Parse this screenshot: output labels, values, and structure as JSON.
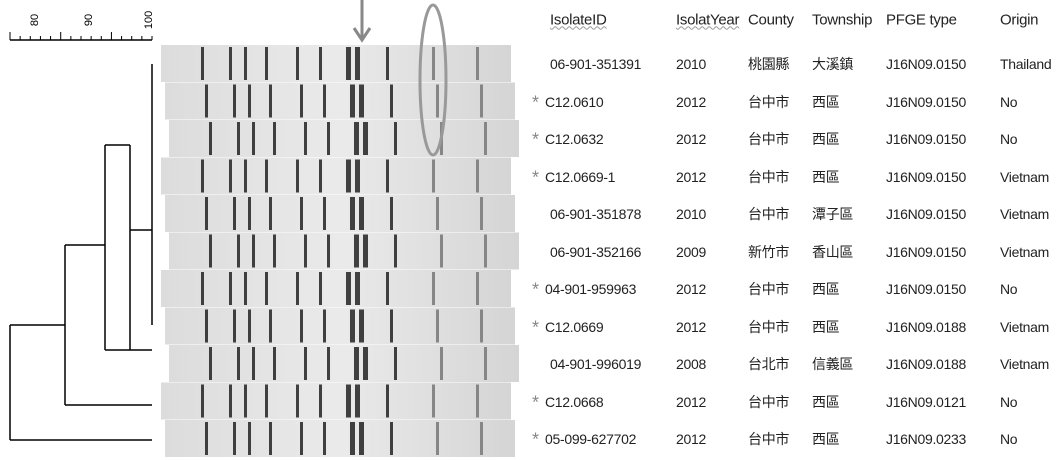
{
  "scale": {
    "labels": [
      "80",
      "90",
      "100"
    ]
  },
  "table": {
    "header": [
      "IsolateID",
      "IsolatYear",
      "County",
      "Township",
      "PFGE type",
      "Origin"
    ],
    "rows": [
      {
        "cells": [
          "06-901-351391",
          "2010",
          "桃園縣",
          "大溪鎮",
          "J16N09.0150",
          "Thailand"
        ]
      },
      {
        "flag": "*",
        "cells": [
          "C12.0610",
          "2012",
          "台中市",
          "西區",
          "J16N09.0150",
          "No"
        ]
      },
      {
        "flag": "*",
        "cells": [
          "C12.0632",
          "2012",
          "台中市",
          "西區",
          "J16N09.0150",
          "No"
        ]
      },
      {
        "flag": "*",
        "cells": [
          "C12.0669-1",
          "2012",
          "台中市",
          "西區",
          "J16N09.0150",
          "Vietnam"
        ]
      },
      {
        "cells": [
          "06-901-351878",
          "2010",
          "台中市",
          "潭子區",
          "J16N09.0150",
          "Vietnam"
        ]
      },
      {
        "cells": [
          "06-901-352166",
          "2009",
          "新竹市",
          "香山區",
          "J16N09.0150",
          "Vietnam"
        ]
      },
      {
        "flag": "*",
        "cells": [
          "04-901-959963",
          "2012",
          "台中市",
          "西區",
          "J16N09.0150",
          "No"
        ]
      },
      {
        "flag": "*",
        "cells": [
          "C12.0669",
          "2012",
          "台中市",
          "西區",
          "J16N09.0188",
          "Vietnam"
        ]
      },
      {
        "cells": [
          "04-901-996019",
          "2008",
          "台北市",
          "信義區",
          "J16N09.0188",
          "Vietnam"
        ]
      },
      {
        "flag": "*",
        "cells": [
          "C12.0668",
          "2012",
          "台中市",
          "西區",
          "J16N09.0121",
          "No"
        ]
      },
      {
        "flag": "*",
        "cells": [
          "05-099-627702",
          "2012",
          "台中市",
          "西區",
          "J16N09.0233",
          "No"
        ]
      }
    ]
  }
}
